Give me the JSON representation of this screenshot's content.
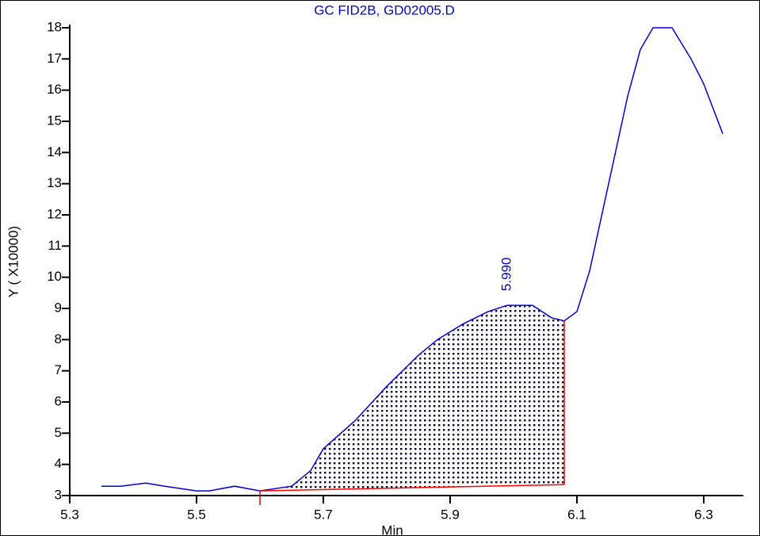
{
  "chart_data": {
    "type": "line",
    "title": "GC FID2B, GD02005.D",
    "x_label": "Min",
    "y_label": "Y ( X10000)",
    "x": [
      5.35,
      5.38,
      5.42,
      5.45,
      5.5,
      5.52,
      5.56,
      5.6,
      5.65,
      5.68,
      5.7,
      5.75,
      5.8,
      5.85,
      5.88,
      5.92,
      5.96,
      5.99,
      6.03,
      6.06,
      6.08,
      6.1,
      6.12,
      6.15,
      6.18,
      6.2,
      6.22,
      6.25,
      6.28,
      6.3,
      6.33
    ],
    "series": [
      {
        "name": "GC FID2B",
        "color": "#0000cc",
        "values": [
          3.3,
          3.3,
          3.4,
          3.3,
          3.15,
          3.15,
          3.3,
          3.15,
          3.3,
          3.8,
          4.5,
          5.4,
          6.5,
          7.5,
          8.0,
          8.5,
          8.9,
          9.1,
          9.1,
          8.7,
          8.6,
          8.9,
          10.2,
          13.0,
          15.8,
          17.3,
          18.0,
          18.0,
          17.0,
          16.2,
          14.6
        ]
      }
    ],
    "baseline": {
      "color": "#ff0000",
      "x": [
        5.6,
        6.08
      ],
      "y": [
        3.15,
        3.35
      ]
    },
    "peak_label": "5.990",
    "xlim": [
      5.3,
      6.36
    ],
    "ylim": [
      3,
      18
    ],
    "xticks": [
      5.3,
      5.5,
      5.7,
      5.9,
      6.1,
      6.3
    ],
    "yticks": [
      3,
      4,
      5,
      6,
      7,
      8,
      9,
      10,
      11,
      12,
      13,
      14,
      15,
      16,
      17,
      18
    ]
  }
}
